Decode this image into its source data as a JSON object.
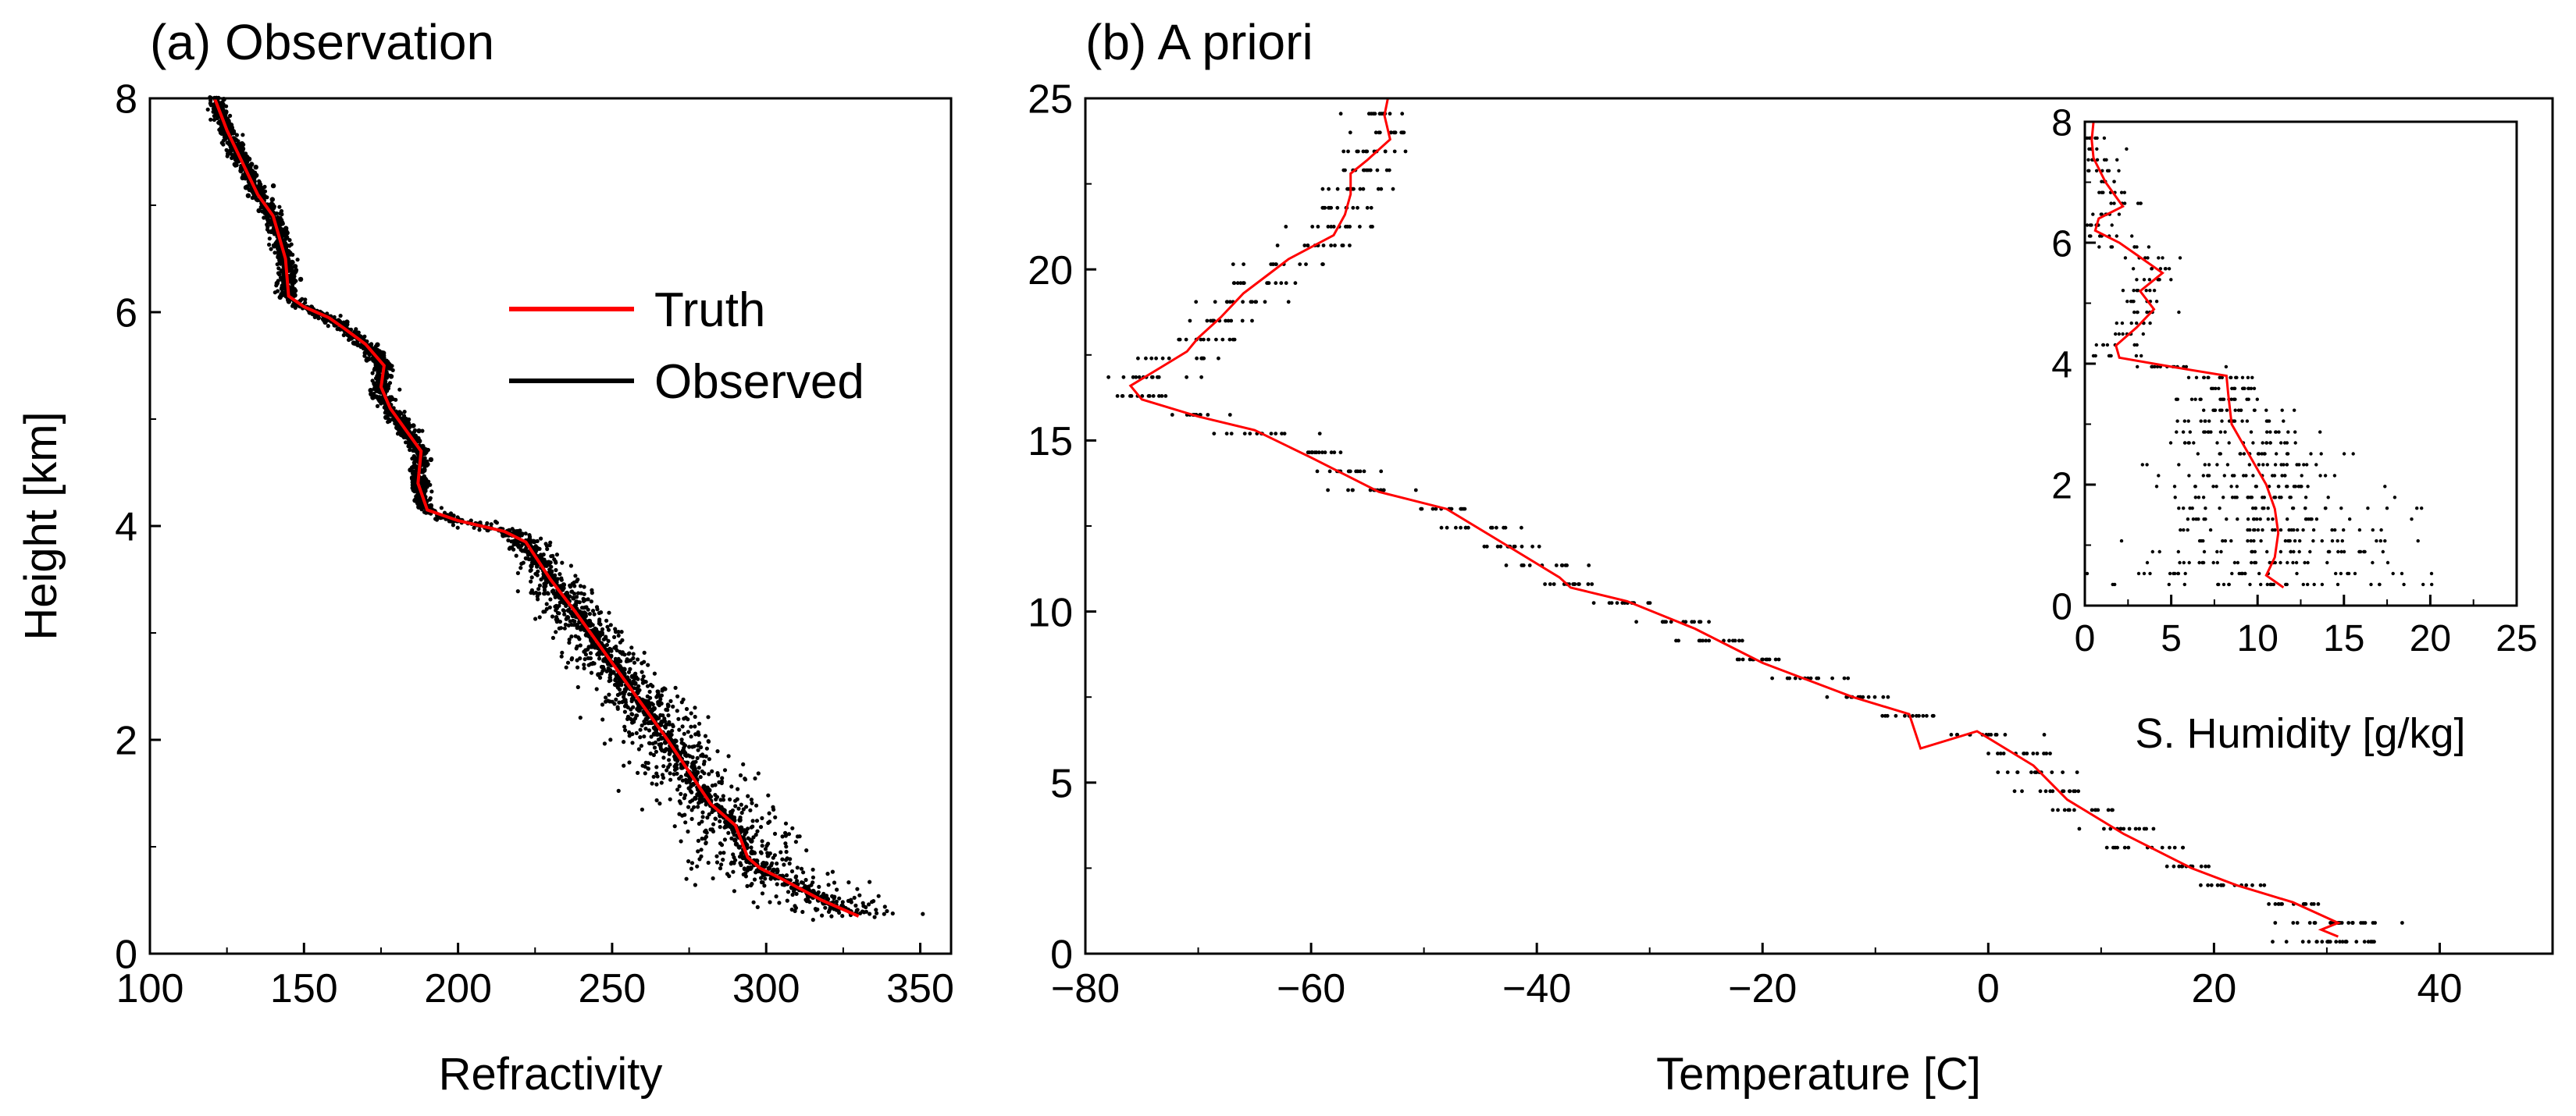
{
  "chart_data": [
    {
      "id": "a",
      "type": "line",
      "title": "(a) Observation",
      "xlabel": "Refractivity",
      "ylabel": "Height [km]",
      "xlim": [
        100,
        360
      ],
      "ylim": [
        0,
        8
      ],
      "xticks": [
        "100",
        "150",
        "200",
        "250",
        "300",
        "350"
      ],
      "yticks": [
        "0",
        "2",
        "4",
        "6",
        "8"
      ],
      "legend": {
        "placement": "upper-right",
        "entries": [
          {
            "label": "Truth",
            "color": "#ff0000"
          },
          {
            "label": "Observed",
            "color": "#000000"
          }
        ]
      },
      "series": [
        {
          "name": "Truth",
          "color": "#ff0000",
          "x": [
            330,
            318,
            305,
            298,
            294,
            290,
            282,
            275,
            268,
            258,
            248,
            238,
            230,
            222,
            215,
            200,
            190,
            187,
            188,
            183,
            178,
            175,
            176,
            170,
            163,
            158,
            150,
            145,
            144,
            140,
            135,
            130,
            125,
            121
          ],
          "y": [
            0.35,
            0.5,
            0.7,
            0.8,
            0.9,
            1.2,
            1.4,
            1.7,
            2.0,
            2.4,
            2.8,
            3.2,
            3.5,
            3.85,
            3.95,
            4.05,
            4.15,
            4.4,
            4.7,
            4.9,
            5.1,
            5.3,
            5.5,
            5.7,
            5.85,
            5.95,
            6.05,
            6.15,
            6.5,
            6.9,
            7.1,
            7.4,
            7.7,
            8.0
          ]
        },
        {
          "name": "Observed",
          "color": "#000000",
          "spread": "scatter of noisy observations around truth"
        }
      ]
    },
    {
      "id": "b",
      "type": "line",
      "title": "(b) A priori",
      "xlabel": "Temperature [C]",
      "ylabel": "",
      "xlim": [
        -80,
        50
      ],
      "ylim": [
        0,
        25
      ],
      "xticks": [
        "−80",
        "−60",
        "−40",
        "−20",
        "0",
        "20",
        "40"
      ],
      "yticks": [
        "0",
        "5",
        "10",
        "15",
        "20",
        "25"
      ],
      "series": [
        {
          "name": "Truth",
          "color": "#ff0000",
          "x": [
            31,
            29.5,
            31,
            27,
            22,
            18,
            12,
            7,
            4,
            -1,
            -6,
            -7,
            -12,
            -20,
            -26,
            -32,
            -37,
            -38,
            -43,
            -48,
            -54,
            -60,
            -65,
            -70,
            -75,
            -76,
            -73,
            -71,
            -70,
            -68,
            -66,
            -64,
            -62,
            -58,
            -57,
            -56.5,
            -56.5,
            -55,
            -53,
            -53.5,
            -53.2
          ],
          "y": [
            0.5,
            0.7,
            0.9,
            1.5,
            2.0,
            2.5,
            3.5,
            4.5,
            5.5,
            6.5,
            6.0,
            7.0,
            7.5,
            8.5,
            9.5,
            10.3,
            10.7,
            11.0,
            12.0,
            13.0,
            13.5,
            14.5,
            15.3,
            15.7,
            16.2,
            16.6,
            17.2,
            17.6,
            18.0,
            18.6,
            19.3,
            19.8,
            20.3,
            21.0,
            21.6,
            22.2,
            22.8,
            23.2,
            23.8,
            24.5,
            25.0
          ]
        },
        {
          "name": "Observed",
          "color": "#000000",
          "spread": "level-wise scatter of prior samples"
        }
      ]
    },
    {
      "id": "inset",
      "type": "line",
      "title": "",
      "xlabel": "S. Humidity [g/kg]",
      "ylabel": "",
      "xlim": [
        0,
        25
      ],
      "ylim": [
        0,
        8
      ],
      "xticks": [
        "0",
        "5",
        "10",
        "15",
        "20",
        "25"
      ],
      "yticks": [
        "0",
        "2",
        "4",
        "6",
        "8"
      ],
      "series": [
        {
          "name": "Truth",
          "color": "#ff0000",
          "x": [
            11.5,
            10.5,
            11,
            11.2,
            11,
            10.5,
            9.5,
            8.5,
            8.3,
            8.2,
            5.0,
            2.0,
            1.8,
            3.0,
            4.0,
            3.2,
            4.5,
            3.0,
            2.0,
            0.6,
            0.8,
            2.2,
            1.2,
            0.5,
            0.4,
            0.5
          ],
          "y": [
            0.3,
            0.5,
            0.8,
            1.2,
            1.6,
            2.0,
            2.5,
            3.0,
            3.5,
            3.8,
            3.95,
            4.1,
            4.3,
            4.6,
            4.9,
            5.2,
            5.5,
            5.8,
            6.0,
            6.2,
            6.4,
            6.6,
            7.0,
            7.4,
            7.7,
            8.0
          ]
        },
        {
          "name": "Observed",
          "color": "#000000",
          "spread": "level-wise scatter of prior samples"
        }
      ]
    }
  ]
}
